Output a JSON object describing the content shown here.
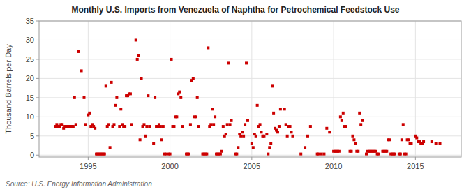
{
  "chart_data": {
    "type": "scatter",
    "title": "Monthly U.S. Imports from Venezuela of Naphtha for Petrochemical Feedstock Use",
    "ylabel": "Thousand Barrels per Day",
    "source": "Source: U.S. Energy Information Administration",
    "color": "#cc0000",
    "marker": "square",
    "grid": true,
    "xlim": [
      1992.0,
      2017.8
    ],
    "ylim": [
      -0.5,
      35
    ],
    "xticks": [
      1995,
      2000,
      2005,
      2010,
      2015
    ],
    "yticks": [
      0,
      5,
      10,
      15,
      20,
      25,
      30,
      35
    ],
    "x": [
      1993.0,
      1993.083,
      1993.167,
      1993.25,
      1993.333,
      1993.417,
      1993.5,
      1993.583,
      1993.667,
      1993.75,
      1993.833,
      1993.917,
      1994.0,
      1994.083,
      1994.167,
      1994.25,
      1994.417,
      1994.583,
      1994.75,
      1994.833,
      1995.0,
      1995.083,
      1995.167,
      1995.25,
      1995.333,
      1995.417,
      1995.5,
      1995.583,
      1995.667,
      1995.75,
      1995.833,
      1995.917,
      1996.0,
      1996.083,
      1996.167,
      1996.25,
      1996.333,
      1996.417,
      1996.5,
      1996.583,
      1996.667,
      1996.75,
      1996.917,
      1997.0,
      1997.083,
      1997.167,
      1997.25,
      1997.333,
      1997.417,
      1997.5,
      1997.583,
      1997.667,
      1997.917,
      1998.0,
      1998.083,
      1998.167,
      1998.25,
      1998.333,
      1998.417,
      1998.5,
      1998.583,
      1998.667,
      1998.75,
      1999.0,
      1999.083,
      1999.167,
      1999.25,
      1999.333,
      1999.417,
      1999.5,
      1999.583,
      1999.667,
      1999.75,
      1999.917,
      2000.0,
      2000.083,
      2000.167,
      2000.25,
      2000.333,
      2000.417,
      2000.5,
      2000.583,
      2000.667,
      2000.75,
      2001.0,
      2001.083,
      2001.167,
      2001.25,
      2001.333,
      2001.417,
      2001.5,
      2001.583,
      2001.667,
      2001.75,
      2002.0,
      2002.083,
      2002.167,
      2002.25,
      2002.333,
      2002.417,
      2002.5,
      2002.583,
      2002.667,
      2002.75,
      2002.833,
      2002.917,
      2003.0,
      2003.083,
      2003.167,
      2003.25,
      2003.333,
      2003.417,
      2003.5,
      2003.583,
      2003.667,
      2003.75,
      2004.0,
      2004.083,
      2004.167,
      2004.25,
      2004.333,
      2004.417,
      2004.5,
      2004.583,
      2004.667,
      2004.75,
      2005.0,
      2005.083,
      2005.167,
      2005.25,
      2005.333,
      2005.417,
      2005.5,
      2005.583,
      2005.667,
      2005.75,
      2005.917,
      2006.0,
      2006.083,
      2006.167,
      2006.25,
      2006.333,
      2006.417,
      2006.5,
      2006.583,
      2006.667,
      2006.75,
      2007.0,
      2007.083,
      2007.167,
      2007.25,
      2007.333,
      2007.417,
      2007.5,
      2008.0,
      2008.25,
      2008.417,
      2008.583,
      2009.0,
      2009.083,
      2009.25,
      2009.417,
      2009.583,
      2009.75,
      2010.0,
      2010.083,
      2010.167,
      2010.25,
      2010.333,
      2010.417,
      2010.5,
      2010.583,
      2010.667,
      2010.75,
      2011.0,
      2011.083,
      2011.167,
      2011.25,
      2011.333,
      2011.417,
      2011.5,
      2011.583,
      2011.667,
      2011.75,
      2012.0,
      2012.083,
      2012.167,
      2012.25,
      2012.333,
      2012.417,
      2012.5,
      2012.583,
      2012.667,
      2012.75,
      2013.0,
      2013.083,
      2013.167,
      2013.25,
      2013.333,
      2013.417,
      2013.5,
      2013.583,
      2013.667,
      2013.75,
      2014.0,
      2014.083,
      2014.167,
      2014.25,
      2014.333,
      2014.417,
      2014.5,
      2014.583,
      2014.667,
      2014.75,
      2015.0,
      2015.083,
      2015.167,
      2015.25,
      2015.333,
      2015.417,
      2015.5,
      2016.0,
      2016.25,
      2016.5
    ],
    "values": [
      7.5,
      8.0,
      7.5,
      7.5,
      8.0,
      8.0,
      7.0,
      7.5,
      7.5,
      7.5,
      7.5,
      7.5,
      7.5,
      7.5,
      15.0,
      8.0,
      27.0,
      22.0,
      15.0,
      8.0,
      10.5,
      11.0,
      7.5,
      8.0,
      7.5,
      7.0,
      0.3,
      0.3,
      0.3,
      0.3,
      0.3,
      0.3,
      0.3,
      18.0,
      7.5,
      8.0,
      2.0,
      19.0,
      7.5,
      8.0,
      13.0,
      15.0,
      7.5,
      12.0,
      8.0,
      7.5,
      7.5,
      15.5,
      15.5,
      16.0,
      16.0,
      8.0,
      30.0,
      25.0,
      26.0,
      4.0,
      20.0,
      7.5,
      8.0,
      5.0,
      7.5,
      15.5,
      7.5,
      3.0,
      15.0,
      7.5,
      7.5,
      8.0,
      7.5,
      4.0,
      7.5,
      0.3,
      0.3,
      0.3,
      0.3,
      25.0,
      7.5,
      7.5,
      10.0,
      10.0,
      16.0,
      16.5,
      15.0,
      7.5,
      0.3,
      0.3,
      0.3,
      8.0,
      19.5,
      20.0,
      10.0,
      10.0,
      15.0,
      7.5,
      0.3,
      0.3,
      0.3,
      0.3,
      28.0,
      7.5,
      8.0,
      12.0,
      8.0,
      10.0,
      0.3,
      0.3,
      0.3,
      0.3,
      1.0,
      7.5,
      5.0,
      5.5,
      8.0,
      24.0,
      8.0,
      9.0,
      0.3,
      0.3,
      2.0,
      5.5,
      5.0,
      6.0,
      5.0,
      8.0,
      24.0,
      9.0,
      3.0,
      2.0,
      5.5,
      5.0,
      13.0,
      7.5,
      8.0,
      6.0,
      5.0,
      5.0,
      5.5,
      0.3,
      2.0,
      3.0,
      18.0,
      11.0,
      7.0,
      6.5,
      6.0,
      7.5,
      12.0,
      12.0,
      8.0,
      5.0,
      7.5,
      7.5,
      6.0,
      5.0,
      0.3,
      2.0,
      5.0,
      7.5,
      0.3,
      0.3,
      0.3,
      0.3,
      7.0,
      6.0,
      1.0,
      1.0,
      1.0,
      1.0,
      1.0,
      10.0,
      9.0,
      11.0,
      7.5,
      7.5,
      1.0,
      1.0,
      5.0,
      4.0,
      3.0,
      1.0,
      1.0,
      11.0,
      8.0,
      9.0,
      0.3,
      1.0,
      1.0,
      1.0,
      1.0,
      1.0,
      1.0,
      1.0,
      0.3,
      0.3,
      1.0,
      1.0,
      1.0,
      1.0,
      4.0,
      4.0,
      0.3,
      0.3,
      0.3,
      0.3,
      0.3,
      0.3,
      4.0,
      8.0,
      0.3,
      0.3,
      4.0,
      4.0,
      3.0,
      3.0,
      5.0,
      4.5,
      3.5,
      3.5,
      3.0,
      3.0,
      3.5,
      3.5,
      3.0,
      3.0
    ]
  }
}
